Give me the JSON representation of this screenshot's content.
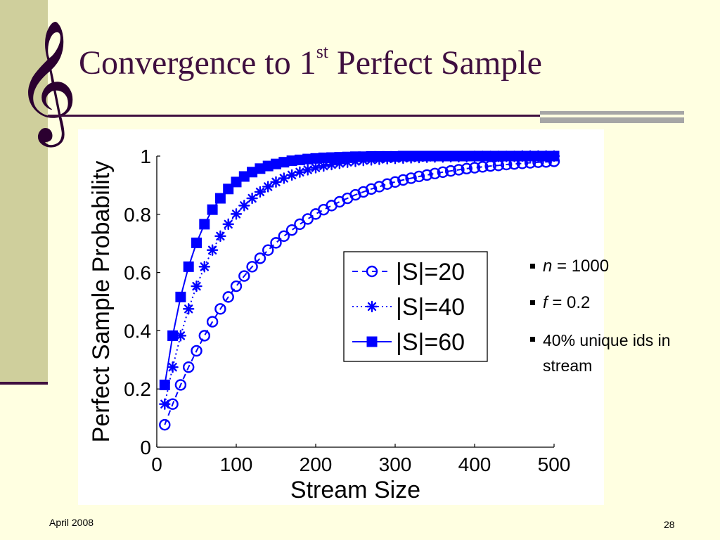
{
  "slide": {
    "clef_glyph": "𝄞",
    "title_main": "Convergence to 1",
    "title_sup": "st",
    "title_end": " Perfect Sample",
    "footer_date": "April 2008",
    "page_number": "28",
    "bullets": [
      {
        "var": "n",
        "text": " = 1000"
      },
      {
        "var": "f",
        "text": " = 0.2"
      },
      {
        "var": "",
        "text": "40% unique ids in stream"
      }
    ]
  },
  "chart_data": {
    "type": "line",
    "xlabel": "Stream Size",
    "ylabel": "Perfect Sample Probability",
    "xlim": [
      0,
      500
    ],
    "ylim": [
      0,
      1
    ],
    "xticks": [
      0,
      100,
      200,
      300,
      400,
      500
    ],
    "yticks": [
      0,
      0.2,
      0.4,
      0.6,
      0.8,
      1
    ],
    "xtick_labels": [
      "0",
      "100",
      "200",
      "300",
      "400",
      "500"
    ],
    "ytick_labels": [
      "0",
      "0.2",
      "0.4",
      "0.6",
      "0.8",
      "1"
    ],
    "grid": false,
    "legend_position": "center-right",
    "color": "#0000ff",
    "series": [
      {
        "name": "|S|=20",
        "marker": "circle",
        "line_style": "dashed",
        "x": [
          10,
          20,
          30,
          40,
          50,
          60,
          70,
          80,
          90,
          100,
          110,
          120,
          130,
          140,
          150,
          160,
          170,
          180,
          190,
          200,
          210,
          220,
          230,
          240,
          250,
          260,
          270,
          280,
          290,
          300,
          310,
          320,
          330,
          340,
          350,
          360,
          370,
          380,
          390,
          400,
          410,
          420,
          430,
          440,
          450,
          460,
          470,
          480,
          490,
          500
        ],
        "values": [
          0.077,
          0.148,
          0.214,
          0.275,
          0.331,
          0.383,
          0.431,
          0.475,
          0.516,
          0.553,
          0.588,
          0.62,
          0.649,
          0.677,
          0.702,
          0.725,
          0.746,
          0.766,
          0.784,
          0.801,
          0.816,
          0.83,
          0.843,
          0.855,
          0.867,
          0.877,
          0.887,
          0.895,
          0.904,
          0.911,
          0.918,
          0.924,
          0.93,
          0.935,
          0.94,
          0.945,
          0.949,
          0.953,
          0.957,
          0.96,
          0.963,
          0.966,
          0.968,
          0.971,
          0.973,
          0.975,
          0.977,
          0.979,
          0.98,
          0.982
        ]
      },
      {
        "name": "|S|=40",
        "marker": "asterisk",
        "line_style": "dotted",
        "x": [
          10,
          20,
          30,
          40,
          50,
          60,
          70,
          80,
          90,
          100,
          110,
          120,
          130,
          140,
          150,
          160,
          170,
          180,
          190,
          200,
          210,
          220,
          230,
          240,
          250,
          260,
          270,
          280,
          290,
          300,
          310,
          320,
          330,
          340,
          350,
          360,
          370,
          380,
          390,
          400,
          410,
          420,
          430,
          440,
          450,
          460,
          470,
          480,
          490,
          500
        ],
        "values": [
          0.148,
          0.275,
          0.383,
          0.475,
          0.553,
          0.62,
          0.677,
          0.725,
          0.766,
          0.801,
          0.83,
          0.855,
          0.877,
          0.895,
          0.911,
          0.924,
          0.935,
          0.945,
          0.953,
          0.96,
          0.966,
          0.971,
          0.975,
          0.979,
          0.982,
          0.985,
          0.987,
          0.989,
          0.991,
          0.992,
          0.993,
          0.994,
          0.995,
          0.996,
          0.997,
          0.997,
          0.998,
          0.998,
          0.998,
          0.999,
          0.999,
          0.999,
          0.999,
          0.999,
          0.999,
          1.0,
          1.0,
          1.0,
          1.0,
          1.0
        ]
      },
      {
        "name": "|S|=60",
        "marker": "square",
        "line_style": "solid",
        "x": [
          10,
          20,
          30,
          40,
          50,
          60,
          70,
          80,
          90,
          100,
          110,
          120,
          130,
          140,
          150,
          160,
          170,
          180,
          190,
          200,
          210,
          220,
          230,
          240,
          250,
          260,
          270,
          280,
          290,
          300,
          310,
          320,
          330,
          340,
          350,
          360,
          370,
          380,
          390,
          400,
          410,
          420,
          430,
          440,
          450,
          460,
          470,
          480,
          490,
          500
        ],
        "values": [
          0.214,
          0.383,
          0.516,
          0.62,
          0.702,
          0.766,
          0.816,
          0.855,
          0.887,
          0.911,
          0.93,
          0.945,
          0.957,
          0.966,
          0.973,
          0.979,
          0.984,
          0.987,
          0.99,
          0.992,
          0.994,
          0.995,
          0.996,
          0.997,
          0.998,
          0.998,
          0.999,
          0.999,
          0.999,
          0.999,
          1.0,
          1.0,
          1.0,
          1.0,
          1.0,
          1.0,
          1.0,
          1.0,
          1.0,
          1.0,
          1.0,
          1.0,
          1.0,
          1.0,
          1.0,
          1.0,
          1.0,
          1.0,
          1.0,
          1.0
        ]
      }
    ]
  }
}
